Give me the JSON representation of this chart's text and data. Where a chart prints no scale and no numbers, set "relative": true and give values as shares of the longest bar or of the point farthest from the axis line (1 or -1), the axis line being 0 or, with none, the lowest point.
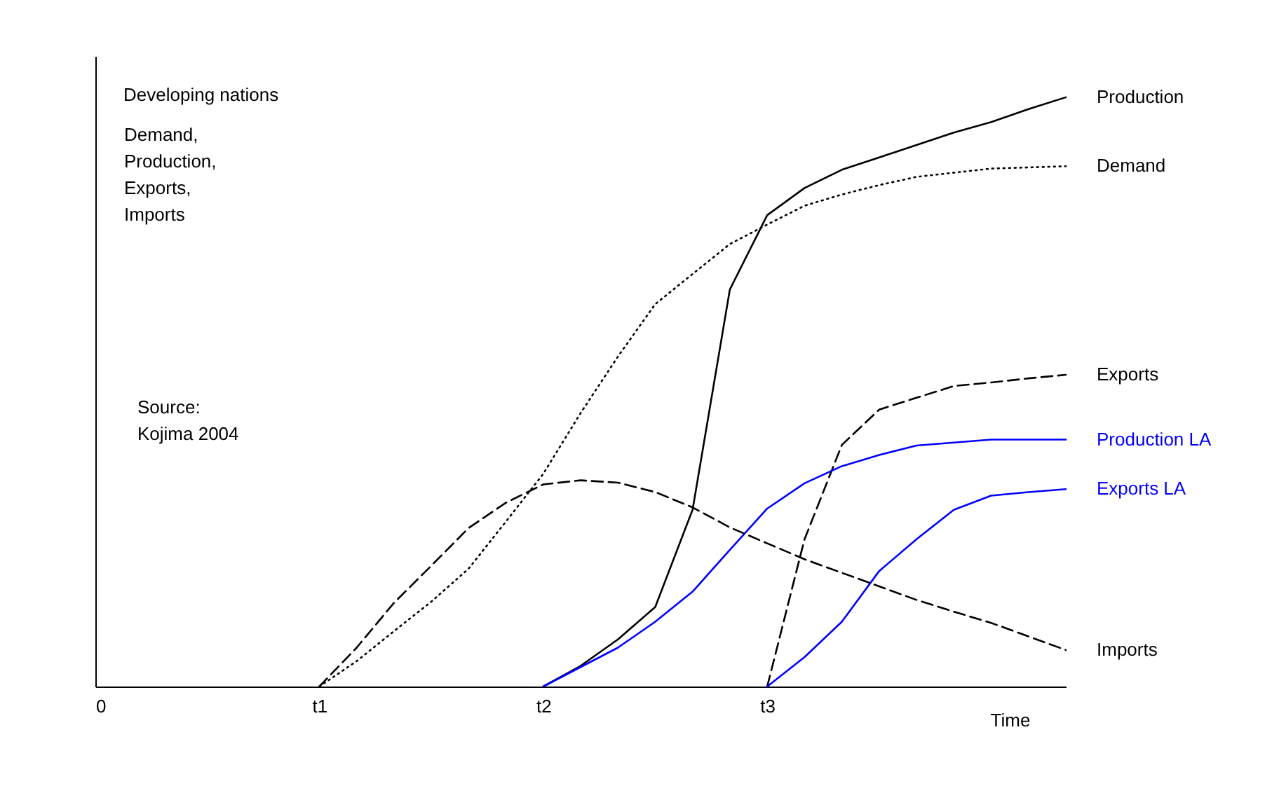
{
  "chart_data": {
    "type": "line",
    "relative": true,
    "title": "Developing nations",
    "ylabel": "Demand,\nProduction,\nExports,\nImports",
    "xlabel": "Time",
    "annotations": [
      "Source:\nKojima 2004"
    ],
    "categories": [
      "0",
      null,
      null,
      null,
      null,
      null,
      "t1",
      null,
      null,
      null,
      null,
      null,
      "t2",
      null,
      null,
      null,
      null,
      null,
      "t3",
      null,
      null,
      null,
      null,
      null,
      null,
      null,
      null
    ],
    "legend": false,
    "marker": "none",
    "series": [
      {
        "name": "Production",
        "color": "#000000",
        "line_style": "solid",
        "values": [
          null,
          null,
          null,
          null,
          null,
          null,
          null,
          null,
          null,
          null,
          null,
          null,
          0,
          0.035,
          0.08,
          0.135,
          0.3,
          0.674,
          0.8,
          0.846,
          0.877,
          0.898,
          0.919,
          0.94,
          0.958,
          0.98,
          1
        ]
      },
      {
        "name": "Demand",
        "color": "#000000",
        "line_style": "dotted",
        "values": [
          null,
          null,
          null,
          null,
          null,
          null,
          0,
          0.043,
          0.094,
          0.144,
          0.2,
          0.28,
          0.361,
          0.464,
          0.56,
          0.649,
          0.7,
          0.751,
          0.784,
          0.816,
          0.835,
          0.851,
          0.865,
          0.872,
          0.879,
          0.881,
          0.883
        ]
      },
      {
        "name": "Exports",
        "color": "#000000",
        "line_style": "dashed",
        "values": [
          null,
          null,
          null,
          null,
          null,
          null,
          null,
          null,
          null,
          null,
          null,
          null,
          null,
          null,
          null,
          null,
          null,
          null,
          0,
          0.25,
          0.41,
          0.47,
          0.49,
          0.51,
          0.516,
          0.523,
          0.529
        ]
      },
      {
        "name": "Production LA",
        "color": "#0000ff",
        "line_style": "solid",
        "values": [
          null,
          null,
          null,
          null,
          null,
          null,
          null,
          null,
          null,
          null,
          null,
          null,
          0,
          0.033,
          0.066,
          0.11,
          0.161,
          0.232,
          0.302,
          0.345,
          0.374,
          0.393,
          0.409,
          0.414,
          0.419,
          0.419,
          0.419
        ]
      },
      {
        "name": "Exports LA",
        "color": "#0000ff",
        "line_style": "solid",
        "values": [
          null,
          null,
          null,
          null,
          null,
          null,
          null,
          null,
          null,
          null,
          null,
          null,
          null,
          null,
          null,
          null,
          null,
          null,
          0,
          0.05,
          0.11,
          0.196,
          0.25,
          0.3,
          0.324,
          0.33,
          0.335
        ]
      },
      {
        "name": "Imports",
        "color": "#000000",
        "line_style": "dashed",
        "values": [
          null,
          null,
          null,
          null,
          null,
          null,
          0,
          0.066,
          0.142,
          0.205,
          0.269,
          0.312,
          0.343,
          0.35,
          0.346,
          0.33,
          0.304,
          0.27,
          0.243,
          0.216,
          0.193,
          0.17,
          0.147,
          0.127,
          0.108,
          0.085,
          0.062
        ]
      }
    ]
  }
}
